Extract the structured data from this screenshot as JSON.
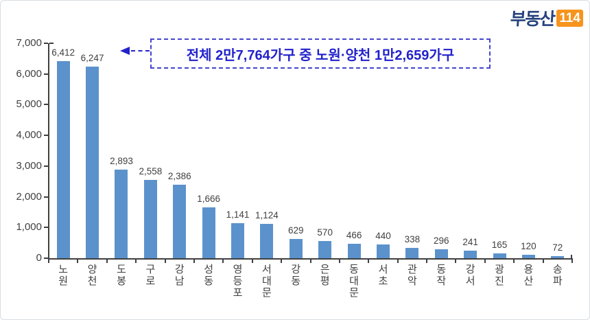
{
  "logo": {
    "brand": "부동산",
    "badge": "114"
  },
  "callout": {
    "text": "전체 2만7,764가구 중 노원·양천 1만2,659가구"
  },
  "colors": {
    "bar": "#5b92cc",
    "callout_blue": "#2222cc",
    "axis": "#3f3f3f",
    "logo_navy": "#26427c",
    "logo_orange": "#f6941d"
  },
  "chart_data": {
    "type": "bar",
    "categories": [
      "노원",
      "양천",
      "도봉",
      "구로",
      "강남",
      "성동",
      "영등포",
      "서대문",
      "강동",
      "은평",
      "동대문",
      "서초",
      "관악",
      "동작",
      "강서",
      "광진",
      "용산",
      "송파"
    ],
    "values": [
      6412,
      6247,
      2893,
      2558,
      2386,
      1666,
      1141,
      1124,
      629,
      570,
      466,
      440,
      338,
      296,
      241,
      165,
      120,
      72
    ],
    "value_labels": [
      "6,412",
      "6,247",
      "2,893",
      "2,558",
      "2,386",
      "1,666",
      "1,141",
      "1,124",
      "629",
      "570",
      "466",
      "440",
      "338",
      "296",
      "241",
      "165",
      "120",
      "72"
    ],
    "title": "",
    "xlabel": "",
    "ylabel": "",
    "ylim": [
      0,
      7000
    ],
    "ytick_step": 1000,
    "ytick_labels": [
      "0",
      "1,000",
      "2,000",
      "3,000",
      "4,000",
      "5,000",
      "6,000",
      "7,000"
    ],
    "grid": false,
    "legend": "none",
    "bar_color": "#5b92cc",
    "total_annotation": "전체 2만7,764가구 중 노원·양천 1만2,659가구"
  }
}
